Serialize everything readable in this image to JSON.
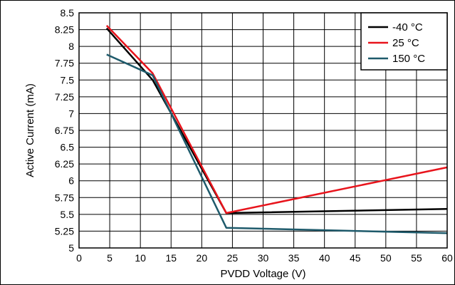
{
  "chart_data": {
    "type": "line",
    "title": "",
    "xlabel": "PVDD Voltage (V)",
    "ylabel": "Active Current (mA)",
    "xlim": [
      0,
      60
    ],
    "ylim": [
      5,
      8.5
    ],
    "x_ticks": [
      0,
      5,
      10,
      15,
      20,
      25,
      30,
      35,
      40,
      45,
      50,
      55,
      60
    ],
    "y_ticks": [
      5,
      5.25,
      5.5,
      5.75,
      6,
      6.25,
      6.5,
      6.75,
      7,
      7.25,
      7.5,
      7.75,
      8,
      8.25,
      8.5
    ],
    "x_tick_labels": [
      "0",
      "5",
      "10",
      "15",
      "20",
      "25",
      "30",
      "35",
      "40",
      "45",
      "50",
      "55",
      "60"
    ],
    "y_tick_labels": [
      "5",
      "5.25",
      "5.5",
      "5.75",
      "6",
      "6.25",
      "6.5",
      "6.75",
      "7",
      "7.25",
      "7.5",
      "7.75",
      "8",
      "8.25",
      "8.5"
    ],
    "grid": true,
    "legend_position": "top-right",
    "series": [
      {
        "name": "-40 °C",
        "color": "#000000",
        "x": [
          4.5,
          12,
          24,
          60
        ],
        "y": [
          8.27,
          7.5,
          5.52,
          5.58
        ]
      },
      {
        "name": "25 °C",
        "color": "#e8141c",
        "x": [
          4.5,
          12,
          24,
          60
        ],
        "y": [
          8.31,
          7.6,
          5.52,
          6.2
        ]
      },
      {
        "name": "150 °C",
        "color": "#1e5a6b",
        "x": [
          4.5,
          12,
          24,
          60
        ],
        "y": [
          7.88,
          7.57,
          5.3,
          5.22
        ]
      }
    ]
  }
}
